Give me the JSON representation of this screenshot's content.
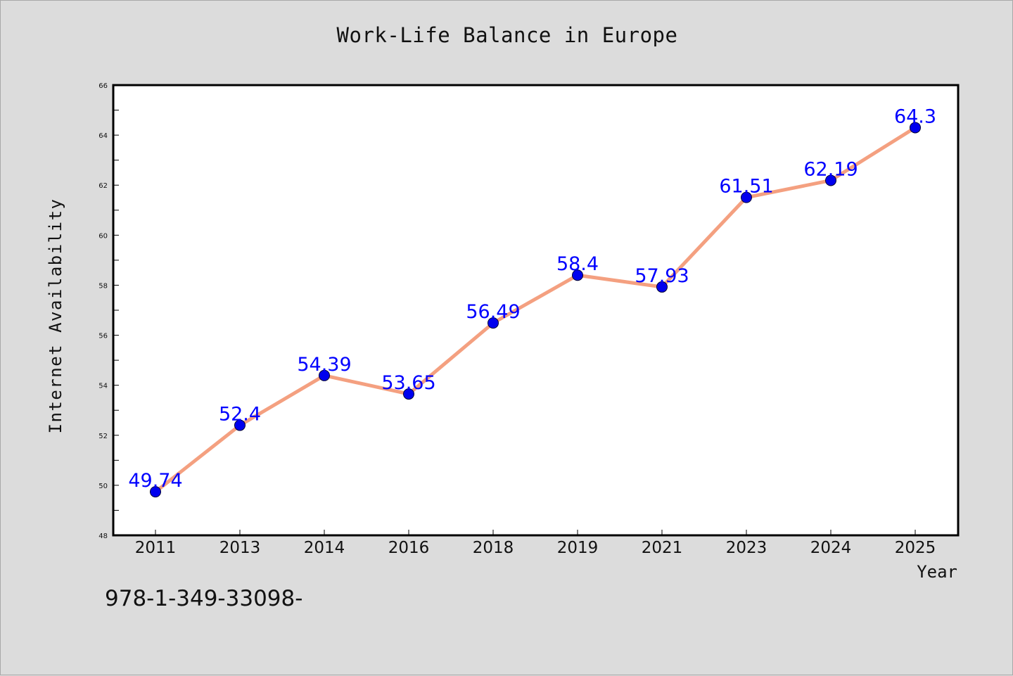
{
  "chart_data": {
    "type": "line",
    "title": "Work-Life Balance in Europe",
    "xlabel": "Year",
    "ylabel": "Internet Availability",
    "categories": [
      "2011",
      "2013",
      "2014",
      "2016",
      "2018",
      "2019",
      "2021",
      "2023",
      "2024",
      "2025"
    ],
    "series": [
      {
        "values": [
          49.74,
          52.4,
          54.39,
          53.65,
          56.49,
          58.4,
          57.93,
          61.51,
          62.19,
          64.3
        ],
        "data_labels": [
          "49.74",
          "52.4",
          "54.39",
          "53.65",
          "56.49",
          "58.4",
          "57.93",
          "61.51",
          "62.19",
          "64.3"
        ],
        "line_color": "#f4a080",
        "marker_color": "#0000ee"
      }
    ],
    "ylim": [
      48,
      66
    ],
    "yticks": [
      48,
      50,
      52,
      54,
      56,
      58,
      60,
      62,
      64,
      66
    ],
    "grid": false,
    "legend": "none",
    "label_color": "#0000ff"
  },
  "footer_text": "978-1-349-33098-"
}
